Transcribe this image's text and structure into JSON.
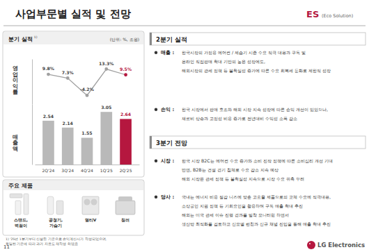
{
  "header": {
    "title": "사업부문별 실적 및 전망",
    "division": "ES",
    "division_full": "(Eco Solution)"
  },
  "chart_data": {
    "type": "bar",
    "title": "분기 실적",
    "annotations": [
      "1)"
    ],
    "subtitle": "(단위: %, 조원)",
    "categories": [
      "2Q'24",
      "3Q'24",
      "4Q'24",
      "1Q'25",
      "2Q'25"
    ],
    "series": [
      {
        "name": "영업이익률",
        "type": "line",
        "axis": "y2",
        "color": "#a0a0a0",
        "colors": [
          "#a0a0a0",
          "#a0a0a0",
          "#a0a0a0",
          "#a0a0a0",
          "#b5173f"
        ],
        "marker": "circle",
        "values": [
          9.8,
          7.3,
          -4.2,
          13.3,
          9.5
        ],
        "value_labels": [
          "9.8%",
          "7.3%",
          "-4.2%",
          "13.3%",
          "9.5%"
        ]
      },
      {
        "name": "매출액",
        "type": "bar",
        "colors": [
          "#b9b9b9",
          "#b9b9b9",
          "#b9b9b9",
          "#b9b9b9",
          "#b5173f"
        ],
        "values": [
          2.54,
          2.14,
          1.55,
          3.05,
          2.64
        ]
      }
    ],
    "ylim": [
      0,
      3.5
    ],
    "yticks": [],
    "y2lim": [
      -10,
      20
    ],
    "y2ticks": [],
    "data_labels": true,
    "tick_labels": "x",
    "grid": false
  },
  "products": {
    "title": "주요 제품",
    "items": [
      {
        "label_lines": [
          "스탠드,",
          "벽걸이"
        ]
      },
      {
        "label_lines": [
          "공청기,",
          "가습기"
        ]
      },
      {
        "label_lines": [
          "멀티V"
        ]
      },
      {
        "label_lines": [
          "칠러"
        ]
      }
    ]
  },
  "footnote": {
    "lines": [
      "1) '25년 1분기부터 신설된 기준으로 손익계산서가 작성되었으며,",
      "동일한 기준에 따라 과거 자료도 재작성 하였음"
    ]
  },
  "sections": [
    {
      "title": "2분기 실적",
      "bullets": [
        {
          "label": "매출 :",
          "lines": [
            "한국시장의 가정용 에어컨 / 제습기 시즌 수요 적극 대응과 구독 및",
            "온라인 직접판매 확대 기반의 높은 성장에도,",
            "해외시장의 관세 정책 등 불확실성 증가에 따른 수요 회복세 둔화로 제한적 성장"
          ]
        },
        {
          "label": "손익 :",
          "lines": [
            "한국 시장에서 판매 호조와 해외 시장 지속 성장에 따른 손익 개선이 있었으나,",
            "재료비 상승과 고정성 비용 증가로 전년대비 수익성 소폭 감소"
          ]
        }
      ]
    },
    {
      "title": "3분기 전망",
      "bullets": [
        {
          "label": "시장 :",
          "lines": [
            "한국 시장 B2C는 에어컨 수요 증가와 소비 진작 정책에 따른 소비심리 개선 기대",
            "반면, B2B는 건설 경기 침체로 수요 감소 지속 예상",
            "해외 시장은 관세 정책 등 불확실성 지속으로 시장 수요 위축 우려"
          ]
        },
        {
          "label": "당사 :",
          "lines": [
            "국내는 에너지 비용 절감 니즈에 맞춘 고효율 제품으로의 교체 수요에 적극대응,",
            "소상공인 지원 정책 등 기회요인을 활용하여 구독 매출 확대 추진",
            "해외는 미국 관세 이슈 진행 경과를 밀착 모니터링 하면서",
            "생산망 최적화를 검토하고 신모델 런칭과 신규 채널 진입을 통해 매출 확대 추진"
          ]
        }
      ]
    }
  ],
  "footer": {
    "page": "11",
    "brand": "LG Electronics"
  }
}
